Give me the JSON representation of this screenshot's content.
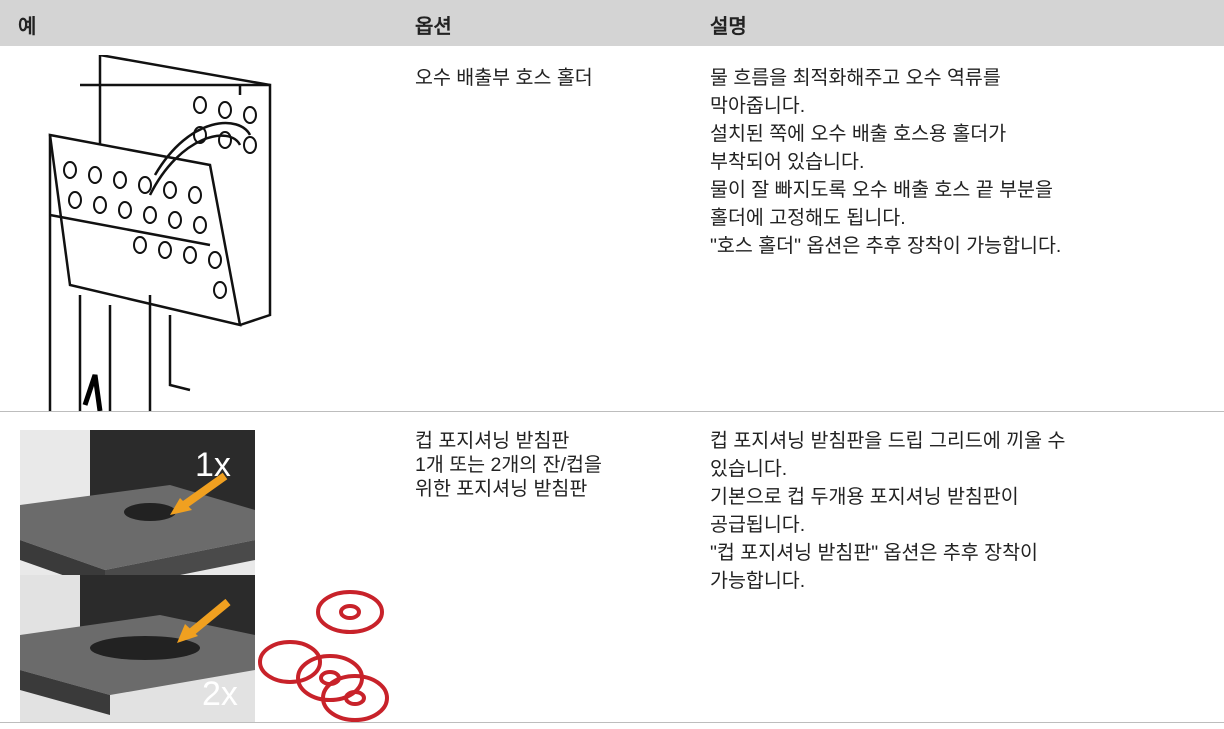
{
  "table": {
    "header": [
      "예",
      "옵션",
      "설명"
    ],
    "rows": [
      {
        "option": [
          "오수 배출부 호스 홀더"
        ],
        "description": [
          "물 흐름을 최적화해주고 오수 역류를",
          "막아줍니다.",
          "설치된 쪽에 오수 배출 호스용 홀더가",
          "부착되어 있습니다.",
          "물이 잘 빠지도록 오수 배출 호스 끝 부분을",
          "홀더에 고정해도 됩니다.",
          "\"호스 홀더\" 옵션은 추후 장착이 가능합니다."
        ]
      },
      {
        "option": [
          "컵 포지셔닝 받침판",
          "1개 또는 2개의 잔/컵을",
          "위한 포지셔닝 받침판"
        ],
        "image_labels": [
          "1x",
          "2x"
        ],
        "description": [
          "컵 포지셔닝 받침판을 드립 그리드에 끼울 수",
          "있습니다.",
          "기본으로 컵 두개용 포지셔닝 받침판이",
          "공급됩니다.",
          "\"컵 포지셔닝 받침판\" 옵션은 추후 장착이",
          "가능합니다."
        ]
      }
    ]
  }
}
